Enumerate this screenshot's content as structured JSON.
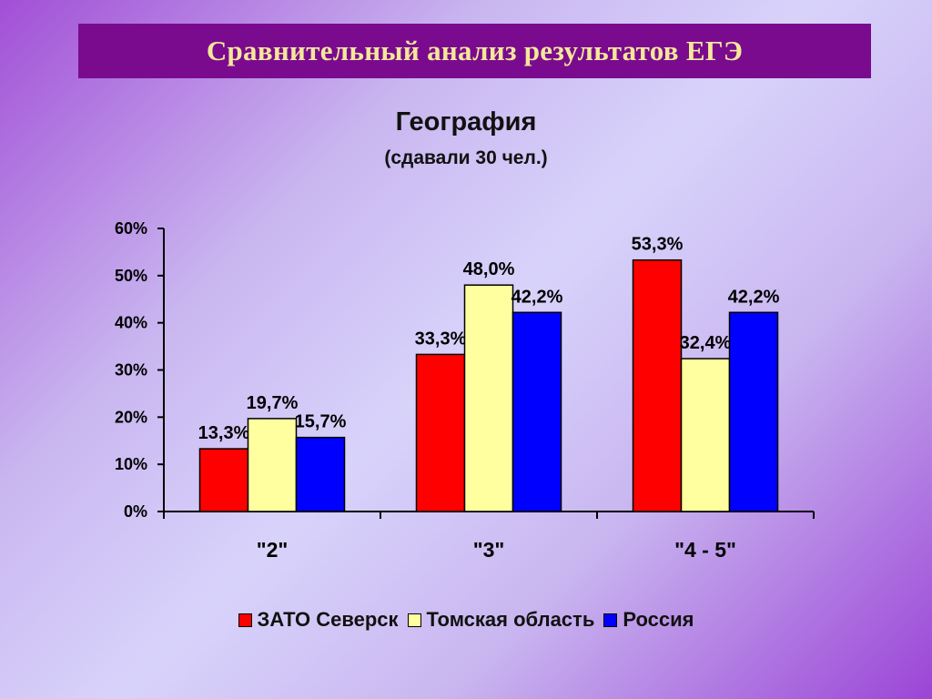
{
  "slide": {
    "title": "Сравнительный анализ результатов ЕГЭ"
  },
  "chart_data": {
    "type": "bar",
    "title": "География",
    "subtitle": "(сдавали 30 чел.)",
    "categories": [
      "\"2\"",
      "\"3\"",
      "\"4 - 5\""
    ],
    "series": [
      {
        "name": "ЗАТО Северск",
        "color": "#ff0000",
        "values": [
          13.3,
          33.3,
          53.3
        ],
        "labels": [
          "13,3%",
          "33,3%",
          "53,3%"
        ]
      },
      {
        "name": "Томская область",
        "color": "#ffffa0",
        "values": [
          19.7,
          48.0,
          32.4
        ],
        "labels": [
          "19,7%",
          "48,0%",
          "32,4%"
        ]
      },
      {
        "name": "Россия",
        "color": "#0000ff",
        "values": [
          15.7,
          42.2,
          42.2
        ],
        "labels": [
          "15,7%",
          "42,2%",
          "42,2%"
        ]
      }
    ],
    "yticks": [
      "0%",
      "10%",
      "20%",
      "30%",
      "40%",
      "50%",
      "60%"
    ],
    "ylim": [
      0,
      60
    ],
    "grid": false,
    "legend_position": "bottom"
  }
}
